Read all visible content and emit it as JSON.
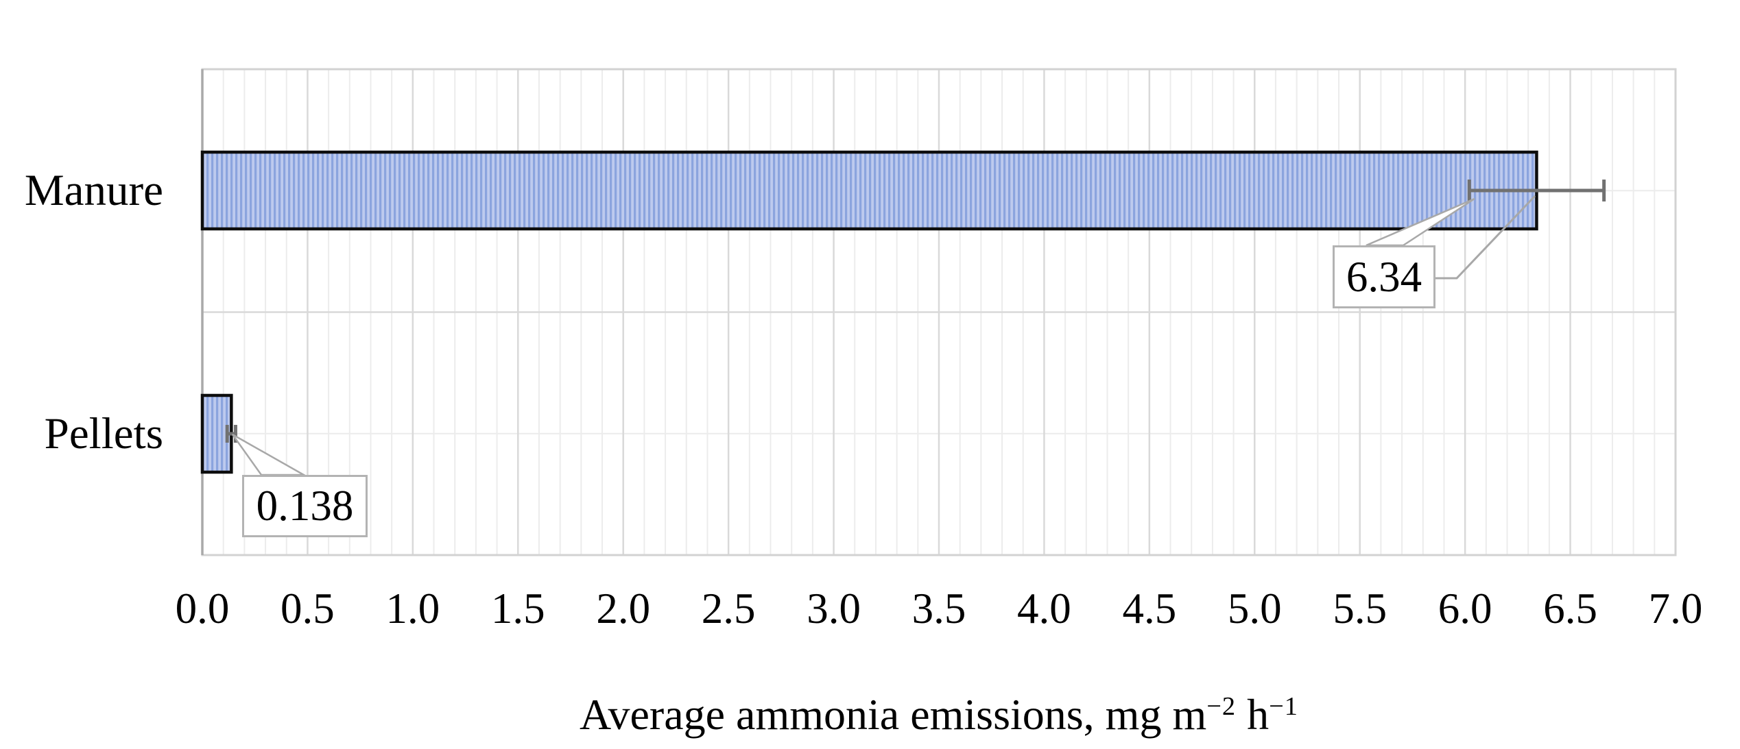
{
  "chart_data": {
    "type": "bar",
    "orientation": "horizontal",
    "title": "",
    "categories": [
      "Manure",
      "Pellets"
    ],
    "values": [
      6.34,
      0.138
    ],
    "error_plus": [
      0.32,
      0.02
    ],
    "error_minus": [
      0.32,
      0.02
    ],
    "data_labels": [
      "6.34",
      "0.138"
    ],
    "xlabel_plain": "Average ammonia emissions, mg m⁻² h⁻¹",
    "xlabel_parts": [
      [
        "text",
        "Average ammonia emissions, mg m"
      ],
      [
        "sup",
        "−2"
      ],
      [
        "text",
        " h"
      ],
      [
        "sup",
        "−1"
      ]
    ],
    "ylabel": "",
    "xlim": [
      0,
      7
    ],
    "xtick_step": 0.5,
    "xminor_step": 0.1,
    "tick_labels": [
      "0.0",
      "0.5",
      "1.0",
      "1.5",
      "2.0",
      "2.5",
      "3.0",
      "3.5",
      "4.0",
      "4.5",
      "5.0",
      "5.5",
      "6.0",
      "6.5",
      "7.0"
    ],
    "legend": "none",
    "grid": "vertical major+minor, horizontal category gridlines",
    "colors": {
      "bar_stripe_dark": "#8ba4de",
      "bar_stripe_light": "#bdcaee",
      "bar_border": "#0d0d0d",
      "grid_minor": "#ececec",
      "grid_major": "#d9d9d9",
      "plot_border": "#d2d2d2",
      "axis_line": "#a9a9a9",
      "error_bar": "#717171",
      "leader_line": "#a8a8a8",
      "label_box_border": "#b3b3b3",
      "text": "#000000",
      "background": "#ffffff"
    }
  }
}
